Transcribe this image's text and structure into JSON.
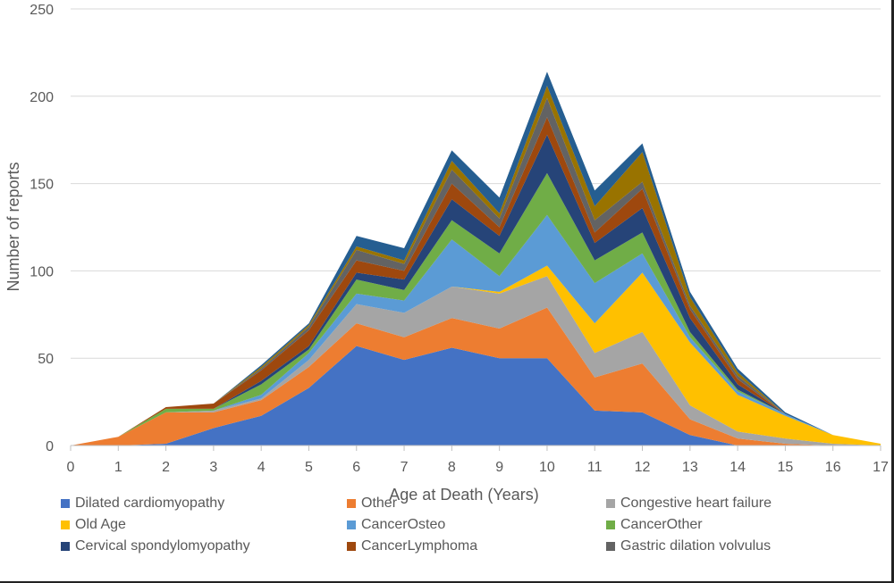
{
  "chart_data": {
    "type": "area",
    "stacked": true,
    "title": "",
    "xlabel": "Age at Death (Years)",
    "ylabel": "Number of reports",
    "x": [
      0,
      1,
      2,
      3,
      4,
      5,
      6,
      7,
      8,
      9,
      10,
      11,
      12,
      13,
      14,
      15,
      16,
      17
    ],
    "xlim": [
      0,
      17
    ],
    "ylim": [
      0,
      250
    ],
    "yticks": [
      0,
      50,
      100,
      150,
      200,
      250
    ],
    "grid": true,
    "legend_position": "bottom",
    "series": [
      {
        "name": "Dilated cardiomyopathy",
        "color": "#4472C4",
        "values": [
          0,
          0,
          1,
          10,
          17,
          33,
          57,
          49,
          56,
          50,
          50,
          20,
          19,
          6,
          0,
          0,
          0,
          0
        ]
      },
      {
        "name": "Other",
        "color": "#ED7D31",
        "values": [
          0,
          5,
          18,
          9,
          9,
          12,
          13,
          13,
          17,
          17,
          29,
          19,
          28,
          9,
          4,
          1,
          0,
          0
        ]
      },
      {
        "name": "Congestive heart failure",
        "color": "#A5A5A5",
        "values": [
          0,
          0,
          0,
          1,
          1,
          4,
          11,
          14,
          18,
          20,
          18,
          14,
          18,
          8,
          4,
          3,
          1,
          0
        ]
      },
      {
        "name": "Old Age",
        "color": "#FFC000",
        "values": [
          0,
          0,
          0,
          0,
          0,
          0,
          0,
          0,
          0,
          1,
          6,
          17,
          34,
          36,
          21,
          13,
          5,
          1
        ]
      },
      {
        "name": "CancerOsteo",
        "color": "#5B9BD5",
        "values": [
          0,
          0,
          0,
          0,
          2,
          4,
          6,
          7,
          27,
          9,
          29,
          23,
          11,
          3,
          2,
          1,
          0,
          0
        ]
      },
      {
        "name": "CancerOther",
        "color": "#70AD47",
        "values": [
          0,
          0,
          2,
          1,
          6,
          2,
          8,
          6,
          11,
          13,
          24,
          13,
          12,
          3,
          1,
          0,
          0,
          0
        ]
      },
      {
        "name": "Cervical spondylomyopathy",
        "color": "#264478",
        "values": [
          0,
          0,
          0,
          0,
          2,
          2,
          4,
          6,
          12,
          10,
          22,
          10,
          14,
          8,
          3,
          0,
          0,
          0
        ]
      },
      {
        "name": "CancerLymphoma",
        "color": "#9E480E",
        "values": [
          0,
          0,
          1,
          3,
          6,
          9,
          7,
          5,
          9,
          5,
          10,
          6,
          11,
          5,
          3,
          0,
          0,
          0
        ]
      },
      {
        "name": "Gastric dilation volvulus",
        "color": "#636363",
        "values": [
          0,
          0,
          0,
          0,
          1,
          2,
          6,
          4,
          8,
          5,
          11,
          7,
          4,
          2,
          2,
          0,
          0,
          0
        ]
      },
      {
        "color": "#997300",
        "values": [
          0,
          0,
          0,
          0,
          1,
          1,
          2,
          2,
          5,
          3,
          7,
          8,
          17,
          5,
          2,
          0,
          0,
          0
        ]
      },
      {
        "color": "#255E91",
        "values": [
          0,
          0,
          0,
          0,
          1,
          1,
          6,
          7,
          6,
          9,
          8,
          9,
          5,
          3,
          2,
          1,
          0,
          0
        ]
      }
    ]
  }
}
